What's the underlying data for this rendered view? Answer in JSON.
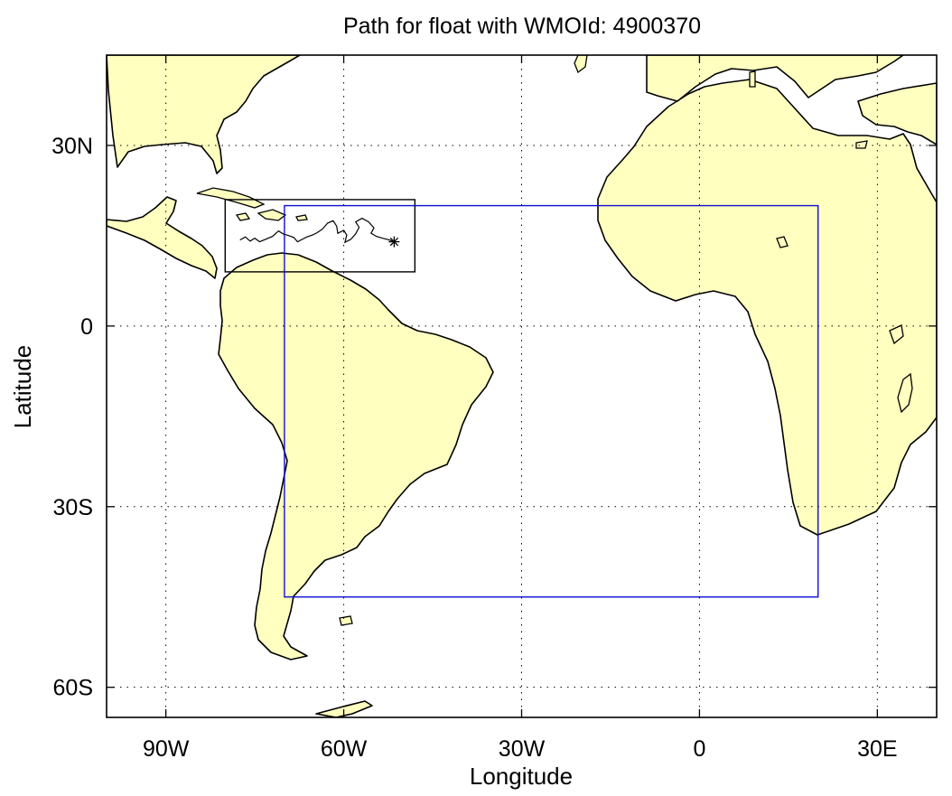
{
  "title": "Path for float with WMOId: 4900370",
  "axes": {
    "xlabel": "Longitude",
    "ylabel": "Latitude",
    "xticks": [
      {
        "label": "90W",
        "lon": -90
      },
      {
        "label": "60W",
        "lon": -60
      },
      {
        "label": "30W",
        "lon": -30
      },
      {
        "label": "0",
        "lon": 0
      },
      {
        "label": "30E",
        "lon": 30
      }
    ],
    "yticks": [
      {
        "label": "30N",
        "lat": 30
      },
      {
        "label": "0",
        "lat": 0
      },
      {
        "label": "30S",
        "lat": -30
      },
      {
        "label": "60S",
        "lat": -60
      }
    ],
    "lon_range": [
      -100,
      40
    ],
    "lat_range": [
      -65,
      45
    ],
    "grid": "dotted"
  },
  "regions": {
    "float_box": {
      "lon": [
        -80,
        -48
      ],
      "lat": [
        9,
        21
      ],
      "color": "#000000"
    },
    "region_box": {
      "lon": [
        -70,
        20
      ],
      "lat": [
        -45,
        20
      ],
      "color": "#1010d0"
    }
  },
  "float_path": {
    "end_marker": "asterisk",
    "points": [
      [
        -77.5,
        14.3
      ],
      [
        -76.6,
        14.8
      ],
      [
        -75.8,
        14.1
      ],
      [
        -75.0,
        14.6
      ],
      [
        -74.2,
        14.0
      ],
      [
        -73.2,
        14.4
      ],
      [
        -72.0,
        14.9
      ],
      [
        -71.0,
        15.8
      ],
      [
        -70.2,
        15.3
      ],
      [
        -69.2,
        15.0
      ],
      [
        -68.4,
        14.7
      ],
      [
        -67.8,
        14.0
      ],
      [
        -67.0,
        14.4
      ],
      [
        -66.2,
        14.8
      ],
      [
        -65.3,
        15.1
      ],
      [
        -64.5,
        15.5
      ],
      [
        -63.6,
        16.1
      ],
      [
        -62.7,
        17.1
      ],
      [
        -61.8,
        17.5
      ],
      [
        -61.2,
        16.6
      ],
      [
        -61.0,
        15.4
      ],
      [
        -60.0,
        15.9
      ],
      [
        -59.5,
        15.1
      ],
      [
        -59.8,
        13.9
      ],
      [
        -58.8,
        14.4
      ],
      [
        -58.0,
        15.3
      ],
      [
        -57.4,
        16.4
      ],
      [
        -58.0,
        17.3
      ],
      [
        -56.9,
        17.9
      ],
      [
        -55.8,
        17.3
      ],
      [
        -54.9,
        16.3
      ],
      [
        -55.4,
        15.4
      ],
      [
        -54.5,
        14.9
      ],
      [
        -53.5,
        14.6
      ],
      [
        -52.3,
        14.3
      ],
      [
        -51.5,
        14.0
      ]
    ]
  },
  "style": {
    "land_color": "#ffffc0",
    "coast_color": "#000000",
    "box_color": "#1010d0"
  }
}
